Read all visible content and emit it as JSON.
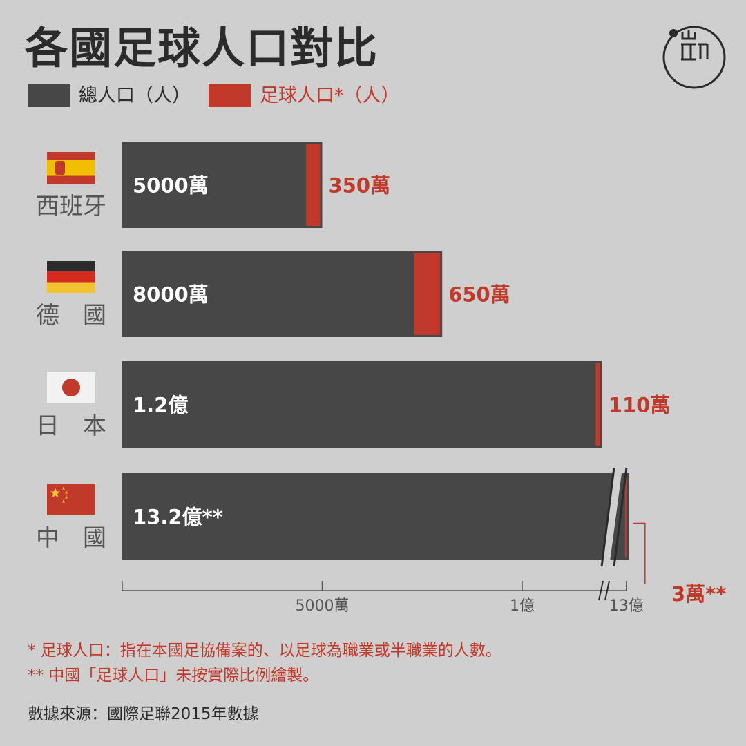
{
  "title": "各國足球人口對比",
  "legend": {
    "total_label": "總人口（人）",
    "football_label": "足球人口*（人）"
  },
  "colors": {
    "background": "#cfcfcf",
    "total_bar": "#474747",
    "football_bar": "#c0392b",
    "text_dark": "#2b2b2b",
    "text_gray": "#555555",
    "accent_red": "#c0392b"
  },
  "countries": [
    {
      "name": "西班牙",
      "flag_icon": "spain-flag-icon"
    },
    {
      "name": "德　國",
      "flag_icon": "germany-flag-icon"
    },
    {
      "name": "日　本",
      "flag_icon": "japan-flag-icon"
    },
    {
      "name": "中　國",
      "flag_icon": "china-flag-icon"
    }
  ],
  "chart_data": {
    "type": "bar",
    "orientation": "horizontal",
    "categories": [
      "西班牙",
      "德　國",
      "日　本",
      "中　國"
    ],
    "series": [
      {
        "name": "總人口（人）",
        "values": [
          50000000,
          80000000,
          120000000,
          1320000000
        ],
        "labels": [
          "5000萬",
          "8000萬",
          "1.2億",
          "13.2億**"
        ]
      },
      {
        "name": "足球人口*（人）",
        "values": [
          3500000,
          6500000,
          1100000,
          30000
        ],
        "labels": [
          "350萬",
          "650萬",
          "110萬",
          "3萬**"
        ]
      }
    ],
    "x_axis": {
      "broken": true,
      "tick_labels": [
        "5000萬",
        "1億",
        "13億"
      ],
      "tick_values": [
        50000000,
        100000000,
        1300000000
      ]
    }
  },
  "footnotes": {
    "note1": "* 足球人口：指在本國足協備案的、以足球為職業或半職業的人數。",
    "note2": "** 中國「足球人口」未按實際比例繪製。",
    "source": "數據來源：國際足聯2015年數據"
  },
  "logo_icon": "theinitium-logo-icon"
}
